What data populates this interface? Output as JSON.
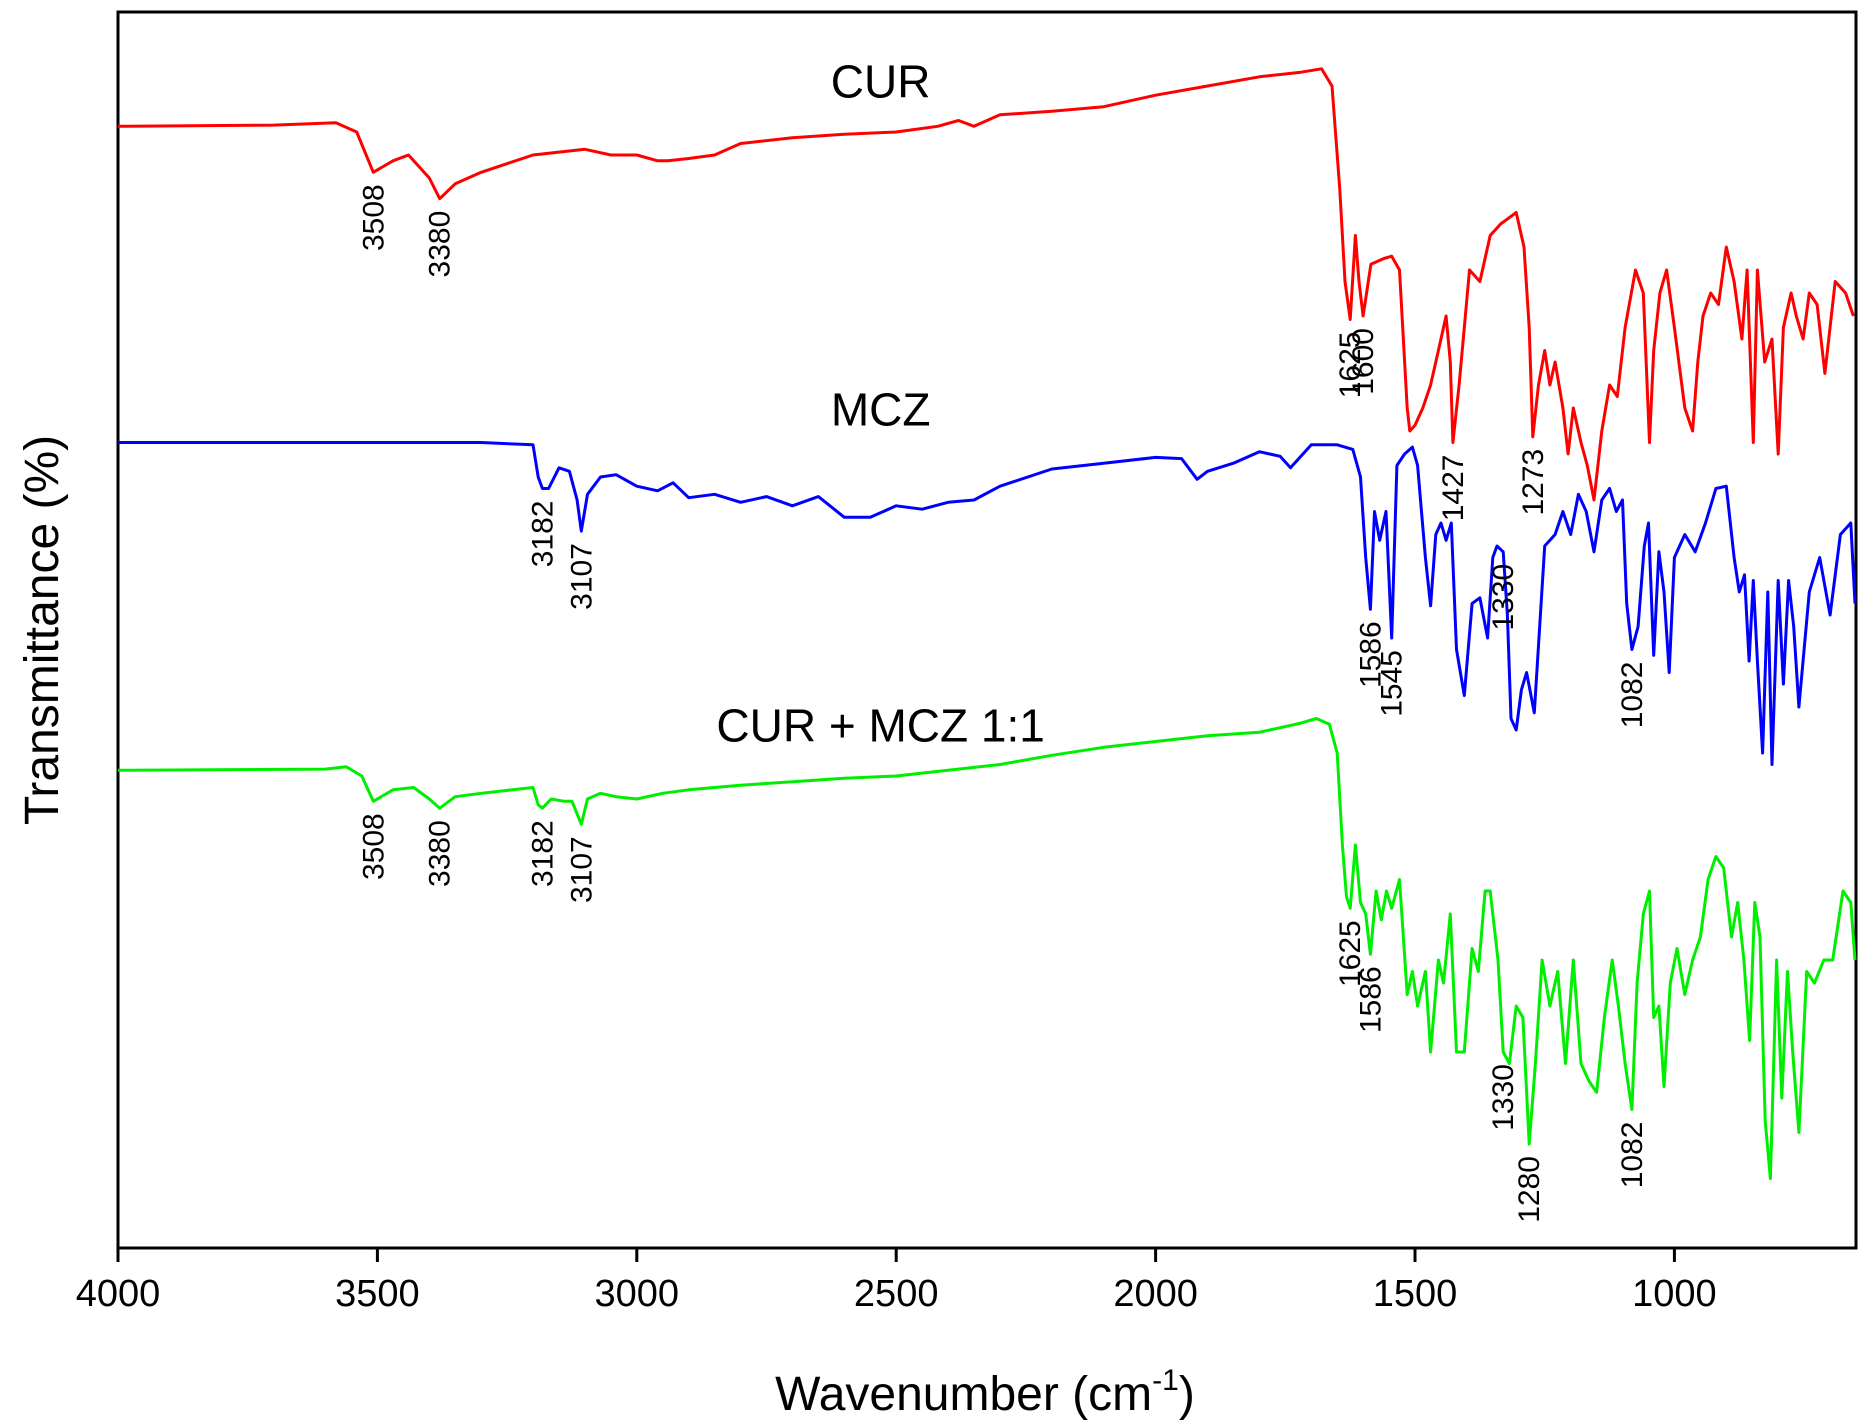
{
  "chart_data": {
    "type": "line",
    "title": "",
    "xlabel": "Wavenumber (cm",
    "xlabel_sup": "-1",
    "xlabel_close": ")",
    "ylabel": "Transmittance (%)",
    "xlim": [
      4000,
      650
    ],
    "xticks": [
      4000,
      3500,
      3000,
      2500,
      2000,
      1500,
      1000
    ],
    "xtick_labels": [
      "4000",
      "3500",
      "3000",
      "2500",
      "2000",
      "1500",
      "1000"
    ],
    "series": [
      {
        "name": "CUR",
        "label": "CUR",
        "color": "#ff0000",
        "label_x": 2530,
        "label_y": 0.95,
        "x": [
          4000,
          3700,
          3580,
          3540,
          3508,
          3470,
          3440,
          3400,
          3380,
          3350,
          3300,
          3200,
          3100,
          3050,
          3000,
          2960,
          2940,
          2900,
          2850,
          2800,
          2700,
          2600,
          2500,
          2420,
          2380,
          2350,
          2300,
          2200,
          2100,
          2000,
          1900,
          1800,
          1720,
          1680,
          1660,
          1645,
          1635,
          1625,
          1615,
          1608,
          1600,
          1585,
          1560,
          1545,
          1530,
          1515,
          1510,
          1500,
          1485,
          1470,
          1455,
          1440,
          1432,
          1427,
          1415,
          1395,
          1375,
          1355,
          1335,
          1320,
          1305,
          1290,
          1280,
          1273,
          1262,
          1250,
          1240,
          1230,
          1215,
          1205,
          1195,
          1180,
          1168,
          1155,
          1140,
          1125,
          1110,
          1095,
          1075,
          1060,
          1048,
          1040,
          1028,
          1015,
          1000,
          980,
          965,
          955,
          945,
          930,
          915,
          900,
          885,
          870,
          860,
          848,
          840,
          826,
          812,
          800,
          790,
          775,
          765,
          752,
          740,
          725,
          710,
          690,
          670,
          655
        ],
        "y": [
          0.925,
          0.926,
          0.928,
          0.92,
          0.885,
          0.895,
          0.9,
          0.88,
          0.862,
          0.875,
          0.885,
          0.9,
          0.905,
          0.9,
          0.9,
          0.895,
          0.895,
          0.897,
          0.9,
          0.91,
          0.915,
          0.918,
          0.92,
          0.925,
          0.93,
          0.925,
          0.935,
          0.938,
          0.942,
          0.952,
          0.96,
          0.968,
          0.972,
          0.975,
          0.96,
          0.87,
          0.79,
          0.757,
          0.83,
          0.79,
          0.76,
          0.805,
          0.81,
          0.812,
          0.8,
          0.68,
          0.66,
          0.665,
          0.68,
          0.7,
          0.73,
          0.76,
          0.72,
          0.65,
          0.7,
          0.8,
          0.79,
          0.83,
          0.84,
          0.845,
          0.85,
          0.82,
          0.75,
          0.655,
          0.7,
          0.73,
          0.7,
          0.72,
          0.68,
          0.64,
          0.68,
          0.65,
          0.63,
          0.6,
          0.66,
          0.7,
          0.69,
          0.75,
          0.8,
          0.78,
          0.65,
          0.73,
          0.78,
          0.8,
          0.75,
          0.68,
          0.66,
          0.72,
          0.76,
          0.78,
          0.77,
          0.82,
          0.79,
          0.74,
          0.8,
          0.65,
          0.8,
          0.72,
          0.74,
          0.64,
          0.75,
          0.78,
          0.76,
          0.74,
          0.78,
          0.77,
          0.71,
          0.79,
          0.78,
          0.76
        ]
      },
      {
        "name": "MCZ",
        "label": "MCZ",
        "color": "#0000ff",
        "label_x": 2530,
        "label_y": 0.665,
        "x": [
          4000,
          3500,
          3300,
          3200,
          3190,
          3182,
          3170,
          3150,
          3130,
          3115,
          3107,
          3095,
          3070,
          3040,
          3000,
          2960,
          2930,
          2900,
          2850,
          2800,
          2750,
          2700,
          2650,
          2600,
          2550,
          2500,
          2450,
          2400,
          2350,
          2300,
          2200,
          2100,
          2000,
          1950,
          1920,
          1900,
          1850,
          1800,
          1760,
          1740,
          1700,
          1650,
          1620,
          1605,
          1595,
          1586,
          1578,
          1568,
          1556,
          1545,
          1535,
          1520,
          1505,
          1495,
          1480,
          1470,
          1460,
          1450,
          1440,
          1430,
          1420,
          1405,
          1390,
          1375,
          1360,
          1350,
          1342,
          1330,
          1322,
          1315,
          1305,
          1295,
          1285,
          1270,
          1250,
          1230,
          1215,
          1200,
          1185,
          1170,
          1155,
          1140,
          1125,
          1112,
          1100,
          1092,
          1082,
          1070,
          1058,
          1050,
          1040,
          1030,
          1020,
          1010,
          1000,
          980,
          960,
          940,
          920,
          900,
          885,
          875,
          865,
          856,
          848,
          840,
          830,
          820,
          812,
          800,
          790,
          780,
          770,
          760,
          740,
          720,
          700,
          680,
          660,
          652
        ],
        "y": [
          0.65,
          0.65,
          0.65,
          0.648,
          0.62,
          0.61,
          0.61,
          0.628,
          0.625,
          0.6,
          0.573,
          0.605,
          0.62,
          0.622,
          0.612,
          0.608,
          0.615,
          0.602,
          0.605,
          0.598,
          0.603,
          0.595,
          0.603,
          0.585,
          0.585,
          0.595,
          0.592,
          0.598,
          0.6,
          0.612,
          0.627,
          0.632,
          0.637,
          0.636,
          0.618,
          0.625,
          0.632,
          0.642,
          0.638,
          0.628,
          0.648,
          0.648,
          0.644,
          0.62,
          0.55,
          0.505,
          0.59,
          0.565,
          0.59,
          0.48,
          0.63,
          0.64,
          0.646,
          0.63,
          0.55,
          0.508,
          0.57,
          0.58,
          0.565,
          0.58,
          0.47,
          0.43,
          0.51,
          0.515,
          0.48,
          0.55,
          0.56,
          0.555,
          0.5,
          0.41,
          0.4,
          0.435,
          0.45,
          0.415,
          0.56,
          0.57,
          0.59,
          0.57,
          0.605,
          0.59,
          0.555,
          0.6,
          0.61,
          0.59,
          0.6,
          0.51,
          0.47,
          0.49,
          0.56,
          0.58,
          0.465,
          0.555,
          0.52,
          0.45,
          0.55,
          0.57,
          0.555,
          0.58,
          0.61,
          0.612,
          0.55,
          0.52,
          0.535,
          0.46,
          0.53,
          0.46,
          0.38,
          0.52,
          0.37,
          0.53,
          0.44,
          0.53,
          0.49,
          0.42,
          0.52,
          0.55,
          0.5,
          0.57,
          0.58,
          0.51
        ]
      },
      {
        "name": "CUR + MCZ 1:1",
        "label": "CUR + MCZ 1:1",
        "color": "#00ee00",
        "label_x": 2530,
        "label_y": 0.39,
        "x": [
          4000,
          3600,
          3560,
          3530,
          3508,
          3470,
          3430,
          3400,
          3380,
          3350,
          3300,
          3200,
          3190,
          3182,
          3165,
          3140,
          3125,
          3107,
          3095,
          3070,
          3040,
          3000,
          2950,
          2900,
          2850,
          2800,
          2700,
          2600,
          2500,
          2400,
          2300,
          2200,
          2100,
          2000,
          1900,
          1800,
          1760,
          1720,
          1690,
          1665,
          1650,
          1640,
          1632,
          1625,
          1615,
          1605,
          1595,
          1586,
          1575,
          1565,
          1555,
          1545,
          1530,
          1515,
          1505,
          1495,
          1480,
          1470,
          1455,
          1445,
          1432,
          1420,
          1405,
          1390,
          1378,
          1365,
          1355,
          1340,
          1330,
          1318,
          1305,
          1292,
          1280,
          1268,
          1255,
          1240,
          1225,
          1210,
          1195,
          1180,
          1165,
          1150,
          1135,
          1120,
          1108,
          1095,
          1082,
          1072,
          1060,
          1048,
          1040,
          1030,
          1020,
          1008,
          995,
          980,
          965,
          950,
          935,
          920,
          905,
          890,
          878,
          866,
          855,
          845,
          835,
          825,
          815,
          803,
          793,
          782,
          772,
          760,
          745,
          730,
          712,
          695,
          675,
          660,
          652
        ],
        "y": [
          0.365,
          0.366,
          0.368,
          0.36,
          0.338,
          0.348,
          0.35,
          0.34,
          0.332,
          0.342,
          0.345,
          0.35,
          0.335,
          0.332,
          0.34,
          0.338,
          0.338,
          0.318,
          0.34,
          0.345,
          0.342,
          0.34,
          0.345,
          0.348,
          0.35,
          0.352,
          0.355,
          0.358,
          0.36,
          0.365,
          0.37,
          0.378,
          0.385,
          0.39,
          0.395,
          0.398,
          0.402,
          0.406,
          0.41,
          0.405,
          0.38,
          0.3,
          0.255,
          0.245,
          0.3,
          0.25,
          0.24,
          0.205,
          0.26,
          0.235,
          0.26,
          0.245,
          0.27,
          0.17,
          0.19,
          0.16,
          0.19,
          0.12,
          0.2,
          0.18,
          0.24,
          0.12,
          0.12,
          0.21,
          0.19,
          0.26,
          0.26,
          0.2,
          0.12,
          0.11,
          0.16,
          0.15,
          0.04,
          0.11,
          0.2,
          0.16,
          0.19,
          0.11,
          0.2,
          0.11,
          0.095,
          0.085,
          0.15,
          0.2,
          0.16,
          0.11,
          0.07,
          0.18,
          0.24,
          0.26,
          0.15,
          0.16,
          0.09,
          0.18,
          0.21,
          0.17,
          0.2,
          0.22,
          0.27,
          0.29,
          0.28,
          0.22,
          0.25,
          0.2,
          0.13,
          0.25,
          0.22,
          0.06,
          0.01,
          0.2,
          0.08,
          0.19,
          0.12,
          0.05,
          0.19,
          0.18,
          0.2,
          0.2,
          0.26,
          0.25,
          0.2
        ]
      }
    ],
    "peak_labels": [
      {
        "series": 0,
        "x": 3508,
        "text": "3508"
      },
      {
        "series": 0,
        "x": 3380,
        "text": "3380"
      },
      {
        "series": 0,
        "x": 1625,
        "text": "1625"
      },
      {
        "series": 0,
        "x": 1600,
        "text": "1600"
      },
      {
        "series": 0,
        "x": 1427,
        "text": "1427"
      },
      {
        "series": 0,
        "x": 1273,
        "text": "1273"
      },
      {
        "series": 1,
        "x": 3182,
        "text": "3182"
      },
      {
        "series": 1,
        "x": 3107,
        "text": "3107"
      },
      {
        "series": 1,
        "x": 1586,
        "text": "1586"
      },
      {
        "series": 1,
        "x": 1545,
        "text": "1545"
      },
      {
        "series": 1,
        "x": 1330,
        "text": "1330"
      },
      {
        "series": 1,
        "x": 1082,
        "text": "1082"
      },
      {
        "series": 2,
        "x": 3508,
        "text": "3508"
      },
      {
        "series": 2,
        "x": 3380,
        "text": "3380"
      },
      {
        "series": 2,
        "x": 3182,
        "text": "3182"
      },
      {
        "series": 2,
        "x": 3107,
        "text": "3107"
      },
      {
        "series": 2,
        "x": 1625,
        "text": "1625"
      },
      {
        "series": 2,
        "x": 1586,
        "text": "1586"
      },
      {
        "series": 2,
        "x": 1330,
        "text": "1330"
      },
      {
        "series": 2,
        "x": 1280,
        "text": "1280"
      },
      {
        "series": 2,
        "x": 1082,
        "text": "1082"
      }
    ]
  }
}
